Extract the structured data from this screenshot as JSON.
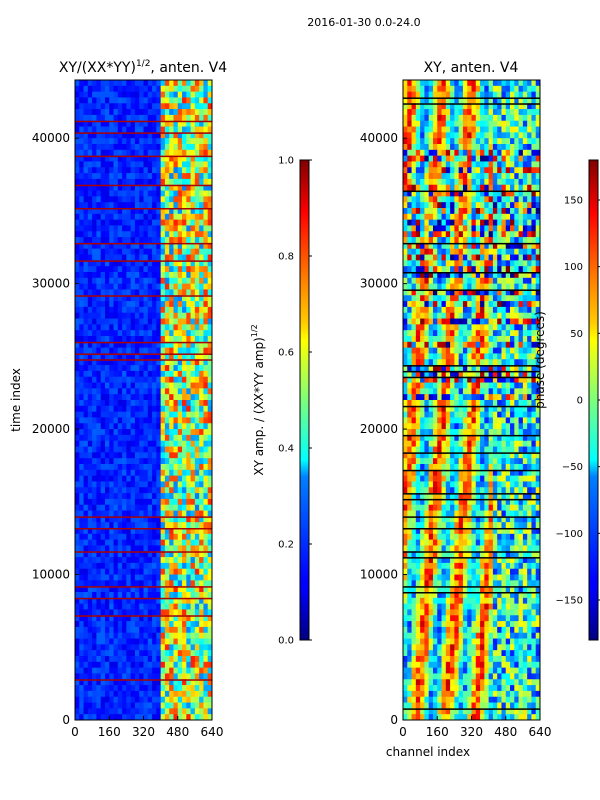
{
  "suptitle": "2016-01-30 0.0-24.0",
  "chart_data": [
    {
      "type": "heatmap",
      "title": "XY/(XX*YY)^(1/2), anten. V4",
      "title_main": "XY/(XX*YY)",
      "title_sup": "1/2",
      "title_tail": ", anten. V4",
      "xlabel": "",
      "ylabel": "time index",
      "xlim": [
        0,
        640
      ],
      "ylim": [
        0,
        44000
      ],
      "xticks": [
        0,
        160,
        320,
        480,
        640
      ],
      "yticks": [
        0,
        10000,
        20000,
        30000,
        40000
      ],
      "colormap": "jet",
      "colorbar": {
        "label": "XY amp. / (XX*YY amp)^(1/2)",
        "label_main": "XY amp. / (XX*YY amp)",
        "label_sup": "1/2",
        "range": [
          0.0,
          1.0
        ],
        "ticks": [
          "0.0",
          "0.2",
          "0.4",
          "0.6",
          "0.8",
          "1.0"
        ]
      }
    },
    {
      "type": "heatmap",
      "title": "XY, anten. V4",
      "xlabel": "channel index",
      "ylabel": "",
      "xlim": [
        0,
        640
      ],
      "ylim": [
        0,
        44000
      ],
      "xticks": [
        0,
        160,
        320,
        480,
        640
      ],
      "yticks": [
        0,
        10000,
        20000,
        30000,
        40000
      ],
      "colormap": "jet",
      "colorbar": {
        "label": "phase (degrees)",
        "range": [
          -180,
          180
        ],
        "ticks": [
          "−150",
          "−100",
          "−50",
          "0",
          "50",
          "100",
          "150"
        ]
      }
    }
  ]
}
